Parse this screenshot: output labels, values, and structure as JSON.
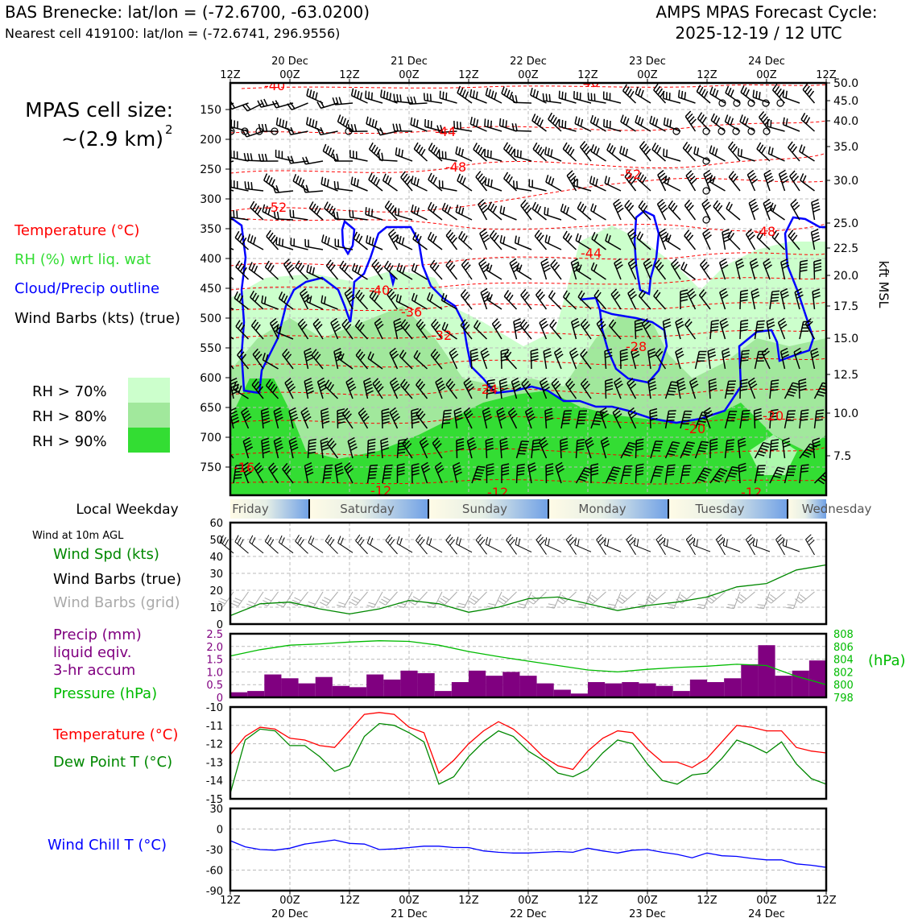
{
  "header": {
    "station_title": "BAS Brenecke: lat/lon = (-72.6700, -63.0200)",
    "nearest_cell": "Nearest cell 419100: lat/lon = (-72.6741, 296.9556)",
    "cycle_title": "AMPS MPAS Forecast Cycle:",
    "cycle_date": "2025-12-19 / 12 UTC"
  },
  "cell_size": {
    "label": "MPAS cell size:",
    "value": "~(2.9 km)",
    "exponent": "2"
  },
  "top_time_axis": {
    "ticks": [
      "12Z",
      "00Z",
      "12Z",
      "00Z",
      "12Z",
      "00Z",
      "12Z",
      "00Z",
      "12Z",
      "00Z",
      "12Z"
    ],
    "day_labels": [
      "20 Dec",
      "21 Dec",
      "22 Dec",
      "23 Dec",
      "24 Dec"
    ]
  },
  "bottom_time_axis": {
    "ticks": [
      "12Z",
      "00Z",
      "12Z",
      "00Z",
      "12Z",
      "00Z",
      "12Z",
      "00Z",
      "12Z",
      "00Z",
      "12Z"
    ],
    "day_labels": [
      "20 Dec",
      "21 Dec",
      "22 Dec",
      "23 Dec",
      "24 Dec"
    ]
  },
  "legend_main": {
    "temperature": "Temperature (°C)",
    "rh": "RH (%) wrt liq. wat",
    "cloud": "Cloud/Precip outline",
    "wind": "Wind Barbs (kts) (true)",
    "rh70": "RH > 70%",
    "rh80": "RH > 80%",
    "rh90": "RH > 90%"
  },
  "colors": {
    "temperature": "#ff0000",
    "rh_label": "#33dd33",
    "cloud": "#0000ff",
    "rh70": "#ccffcc",
    "rh80": "#a1e89c",
    "rh90": "#33dd33",
    "precip": "#800080",
    "pressure": "#00bb00",
    "dewpoint": "#008800",
    "windchill": "#0000ff",
    "windspd": "#008800",
    "barb_grid": "#aaaaaa"
  },
  "weekday": {
    "label": "Local Weekday",
    "days": [
      "Friday",
      "Saturday",
      "Sunday",
      "Monday",
      "Tuesday",
      "Wednesday"
    ]
  },
  "wind_panel": {
    "title": "Wind at 10m AGL",
    "spd_label": "Wind Spd (kts)",
    "barbs_true_label": "Wind Barbs (true)",
    "barbs_grid_label": "Wind Barbs (grid)"
  },
  "precip_panel": {
    "precip_label_1": "Precip (mm)",
    "precip_label_2": "liquid eqiv.",
    "precip_label_3": "3-hr accum",
    "pressure_label": "Pressure (hPa)",
    "hpa_label": "(hPa)"
  },
  "temp_panel": {
    "temp_label": "Temperature (°C)",
    "dew_label": "Dew Point T (°C)"
  },
  "chill_panel": {
    "label": "Wind Chill T (°C)"
  },
  "chart_data": [
    {
      "type": "cross-section",
      "name": "time-height section",
      "ylabel": "kft MSL",
      "y_pressure_ticks": [
        "150",
        "200",
        "250",
        "300",
        "350",
        "400",
        "450",
        "500",
        "550",
        "600",
        "650",
        "700",
        "750"
      ],
      "y_height_ticks": [
        "50.0",
        "45.0",
        "40.0",
        "35.0",
        "30.0",
        "25.0",
        "22.5",
        "20.0",
        "17.5",
        "15.0",
        "12.5",
        "10.0",
        "7.5"
      ],
      "temperature_contour_labels": [
        "-40",
        "-40",
        "-44",
        "-48",
        "-52",
        "-52",
        "-48",
        "-44",
        "-40",
        "-36",
        "-32",
        "-28",
        "-24",
        "-20",
        "-20",
        "-16",
        "-12",
        "-12",
        "-12"
      ]
    },
    {
      "type": "line",
      "name": "10m wind speed",
      "ylabel": "Wind Spd (kts)",
      "ylim": [
        0,
        60
      ],
      "yticks": [
        "0",
        "10",
        "20",
        "30",
        "40",
        "50",
        "60"
      ],
      "x_hours": [
        0,
        6,
        12,
        18,
        24,
        30,
        36,
        42,
        48,
        54,
        60,
        66,
        72,
        78,
        84,
        90,
        96,
        102,
        108,
        114,
        120
      ],
      "values": [
        5,
        12,
        13,
        9,
        6,
        9,
        14,
        12,
        7,
        10,
        15,
        16,
        12,
        8,
        11,
        13,
        16,
        22,
        24,
        32,
        35
      ]
    },
    {
      "type": "bar+line",
      "name": "precip and pressure",
      "ylabel": "Precip (mm)",
      "ylim": [
        0,
        2.5
      ],
      "yticks": [
        "0",
        "0.5",
        "1.0",
        "1.5",
        "2.0",
        "2.5"
      ],
      "y2lim": [
        798,
        808
      ],
      "y2ticks": [
        "798",
        "800",
        "802",
        "804",
        "806",
        "808"
      ],
      "precip_values": [
        0.2,
        0.25,
        0.9,
        0.75,
        0.55,
        0.8,
        0.45,
        0.4,
        0.9,
        0.7,
        1.05,
        0.95,
        0.25,
        0.6,
        1.05,
        0.85,
        1.0,
        0.85,
        0.55,
        0.3,
        0.15,
        0.6,
        0.55,
        0.6,
        0.55,
        0.45,
        0.25,
        0.7,
        0.6,
        0.75,
        1.3,
        2.05,
        0.85,
        1.05,
        1.45
      ],
      "pressure_x_hours": [
        0,
        6,
        12,
        18,
        24,
        30,
        36,
        42,
        48,
        54,
        60,
        66,
        72,
        78,
        84,
        90,
        96,
        102,
        108,
        114,
        120
      ],
      "pressure_values": [
        804.5,
        805.5,
        806.2,
        806.4,
        806.7,
        806.9,
        806.8,
        806.2,
        805.2,
        804.4,
        803.7,
        803.0,
        802.3,
        802.0,
        802.4,
        802.7,
        802.9,
        803.2,
        803.0,
        801.3,
        800.0
      ]
    },
    {
      "type": "line",
      "name": "temperature and dew point",
      "ylim": [
        -15,
        -10
      ],
      "yticks": [
        "-10",
        "-11",
        "-12",
        "-13",
        "-14",
        "-15"
      ],
      "x_hours": [
        0,
        3,
        6,
        9,
        12,
        15,
        18,
        21,
        24,
        27,
        30,
        33,
        36,
        39,
        42,
        45,
        48,
        51,
        54,
        57,
        60,
        63,
        66,
        69,
        72,
        75,
        78,
        81,
        84,
        87,
        90,
        93,
        96,
        99,
        102,
        105,
        108,
        111,
        114,
        117,
        120
      ],
      "series": [
        {
          "name": "Temperature",
          "values": [
            -12.6,
            -11.6,
            -11.1,
            -11.2,
            -11.7,
            -11.8,
            -12.1,
            -12.2,
            -11.3,
            -10.4,
            -10.3,
            -10.4,
            -11.1,
            -11.4,
            -13.6,
            -12.9,
            -12.0,
            -11.3,
            -10.8,
            -11.2,
            -11.9,
            -12.7,
            -13.2,
            -13.4,
            -12.4,
            -11.7,
            -11.3,
            -11.4,
            -12.3,
            -13.0,
            -13.0,
            -13.3,
            -12.8,
            -11.9,
            -11.0,
            -11.1,
            -11.3,
            -11.3,
            -12.2,
            -12.4,
            -12.5
          ]
        },
        {
          "name": "Dew Point",
          "values": [
            -14.7,
            -11.8,
            -11.2,
            -11.3,
            -12.1,
            -12.1,
            -12.7,
            -13.5,
            -13.2,
            -11.6,
            -10.9,
            -11.0,
            -11.4,
            -11.9,
            -14.2,
            -13.8,
            -12.7,
            -11.9,
            -11.3,
            -11.6,
            -12.4,
            -12.9,
            -13.6,
            -13.8,
            -13.4,
            -12.5,
            -11.8,
            -12.0,
            -13.1,
            -14.0,
            -14.2,
            -13.7,
            -13.6,
            -12.8,
            -11.8,
            -12.1,
            -12.5,
            -11.9,
            -13.1,
            -13.9,
            -14.2
          ]
        }
      ]
    },
    {
      "type": "line",
      "name": "wind chill",
      "ylabel": "Wind Chill T (°C)",
      "ylim": [
        -90,
        30
      ],
      "yticks": [
        "30",
        "0",
        "-30",
        "-60",
        "-90"
      ],
      "x_hours": [
        0,
        3,
        6,
        9,
        12,
        15,
        18,
        21,
        24,
        27,
        30,
        33,
        36,
        39,
        42,
        45,
        48,
        51,
        54,
        57,
        60,
        63,
        66,
        69,
        72,
        75,
        78,
        81,
        84,
        87,
        90,
        93,
        96,
        99,
        102,
        105,
        108,
        111,
        114,
        117,
        120
      ],
      "values": [
        -17,
        -26,
        -30,
        -31,
        -28,
        -22,
        -19,
        -16,
        -21,
        -22,
        -30,
        -29,
        -27,
        -25,
        -25,
        -27,
        -27,
        -32,
        -34,
        -35,
        -35,
        -34,
        -33,
        -34,
        -28,
        -32,
        -35,
        -31,
        -30,
        -34,
        -37,
        -42,
        -35,
        -39,
        -40,
        -43,
        -45,
        -45,
        -51,
        -53,
        -56
      ]
    }
  ]
}
